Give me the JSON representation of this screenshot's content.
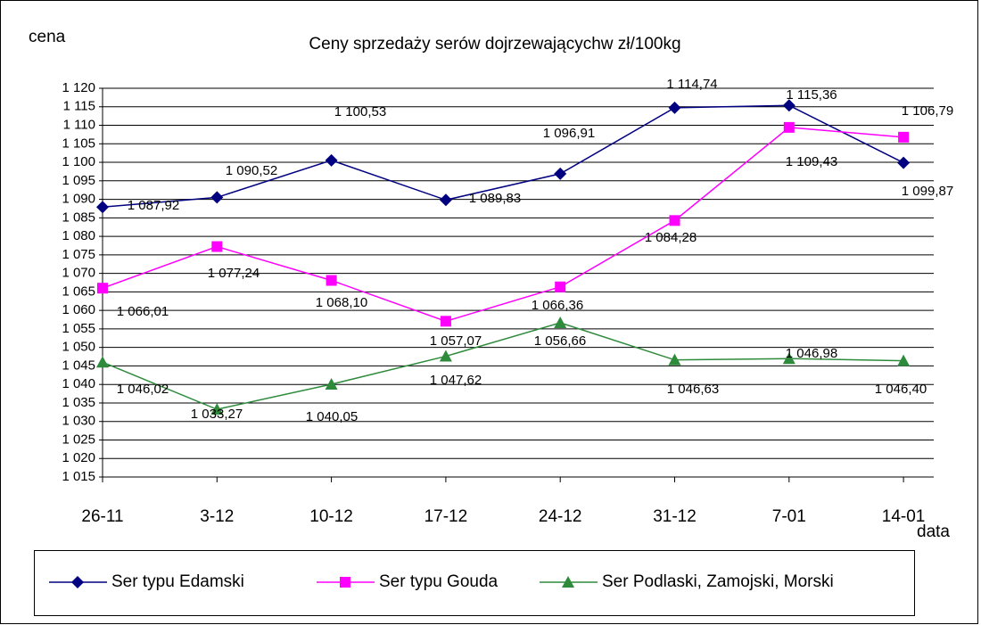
{
  "chart_data": {
    "type": "line",
    "title": "Ceny sprzedaży serów dojrzewającychw zł/100kg",
    "y_label": "cena",
    "x_label": "data",
    "categories": [
      "26-11",
      "3-12",
      "10-12",
      "17-12",
      "24-12",
      "31-12",
      "7-01",
      "14-01"
    ],
    "series": [
      {
        "name": "Ser typu Edamski",
        "color": "#000080",
        "marker": "diamond",
        "values": [
          1087.92,
          1090.52,
          1100.53,
          1089.83,
          1096.91,
          1114.74,
          1115.36,
          1099.87
        ],
        "value_labels": [
          "1 087,92",
          "1 090,52",
          "1 100,53",
          "1 089,83",
          "1 096,91",
          "1 114,74",
          "1 115,36",
          "1 099,87"
        ]
      },
      {
        "name": "Ser typu Gouda",
        "color": "#ff00ff",
        "marker": "square",
        "values": [
          1066.01,
          1077.24,
          1068.1,
          1057.07,
          1066.36,
          1084.28,
          1109.43,
          1106.79
        ],
        "value_labels": [
          "1 066,01",
          "1 077,24",
          "1 068,10",
          "1 057,07",
          "1 066,36",
          "1 084,28",
          "1 109,43",
          "1 106,79"
        ]
      },
      {
        "name": "Ser Podlaski, Zamojski, Morski",
        "color": "#2e8b3c",
        "marker": "triangle",
        "values": [
          1046.02,
          1033.27,
          1040.05,
          1047.62,
          1056.66,
          1046.63,
          1046.98,
          1046.4
        ],
        "value_labels": [
          "1 046,02",
          "1 033,27",
          "1 040,05",
          "1 047,62",
          "1 056,66",
          "1 046,63",
          "1 046,98",
          "1 046,40"
        ]
      }
    ],
    "ylim": [
      1015,
      1120
    ],
    "yticks": [
      {
        "value": 1015,
        "label": "1 015"
      },
      {
        "value": 1020,
        "label": "1 020"
      },
      {
        "value": 1025,
        "label": "1 025"
      },
      {
        "value": 1030,
        "label": "1 030"
      },
      {
        "value": 1035,
        "label": "1 035"
      },
      {
        "value": 1040,
        "label": "1 040"
      },
      {
        "value": 1045,
        "label": "1 045"
      },
      {
        "value": 1050,
        "label": "1 050"
      },
      {
        "value": 1055,
        "label": "1 055"
      },
      {
        "value": 1060,
        "label": "1 060"
      },
      {
        "value": 1065,
        "label": "1 065"
      },
      {
        "value": 1070,
        "label": "1 070"
      },
      {
        "value": 1075,
        "label": "1 075"
      },
      {
        "value": 1080,
        "label": "1 080"
      },
      {
        "value": 1085,
        "label": "1 085"
      },
      {
        "value": 1090,
        "label": "1 090"
      },
      {
        "value": 1095,
        "label": "1 095"
      },
      {
        "value": 1100,
        "label": "1 100"
      },
      {
        "value": 1105,
        "label": "1 105"
      },
      {
        "value": 1110,
        "label": "1 110"
      },
      {
        "value": 1115,
        "label": "1 115"
      },
      {
        "value": 1120,
        "label": "1 120"
      }
    ],
    "grid": true,
    "legend": "bottom"
  }
}
